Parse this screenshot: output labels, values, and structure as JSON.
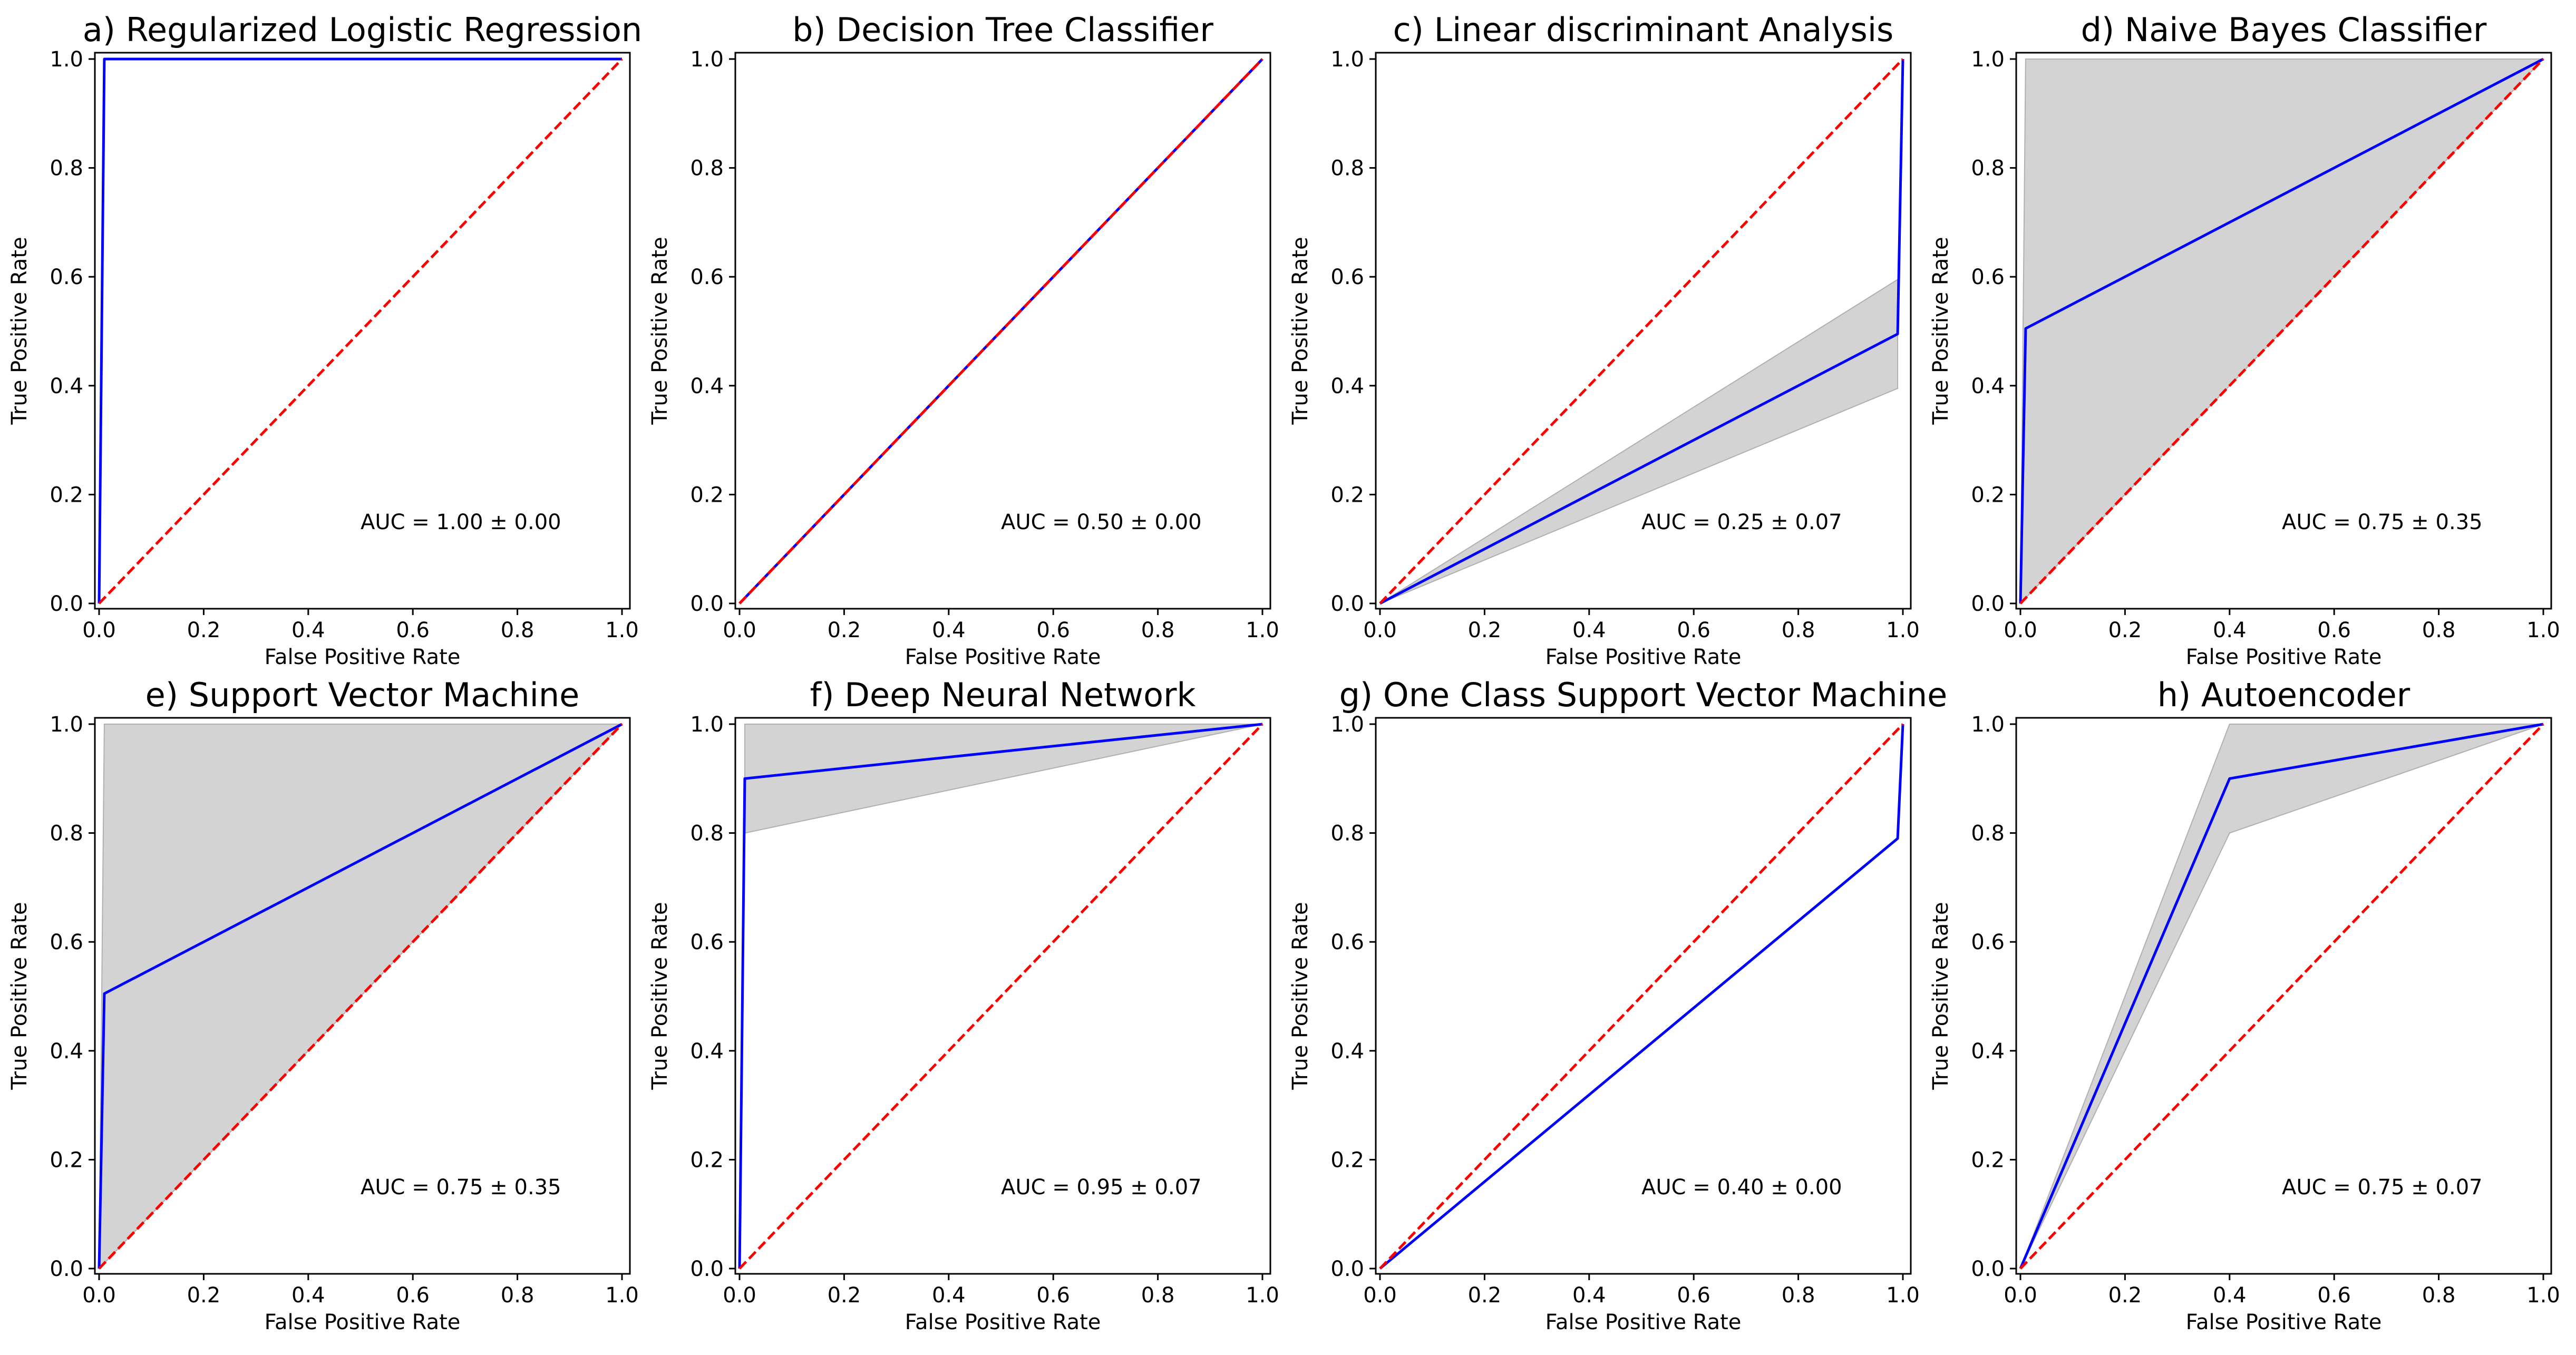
{
  "chart_data": [
    {
      "type": "line",
      "title": "a) Regularized Logistic Regression",
      "xlabel": "False Positive Rate",
      "ylabel": "True Positive Rate",
      "xlim": [
        0,
        1
      ],
      "ylim": [
        0,
        1
      ],
      "xticks": [
        "0.0",
        "0.2",
        "0.4",
        "0.6",
        "0.8",
        "1.0"
      ],
      "yticks": [
        "0.0",
        "0.2",
        "0.4",
        "0.6",
        "0.8",
        "1.0"
      ],
      "roc": {
        "x": [
          0.0,
          0.01,
          1.0
        ],
        "y": [
          0.0,
          1.0,
          1.0
        ],
        "color": "#0000ff"
      },
      "band": null,
      "chance": {
        "x": [
          0,
          1
        ],
        "y": [
          0,
          1
        ],
        "color": "#ff0000",
        "style": "dashed"
      },
      "annotation": "AUC = 1.00 ± 0.00"
    },
    {
      "type": "line",
      "title": "b) Decision Tree Classifier",
      "xlabel": "False Positive Rate",
      "ylabel": "True Positive Rate",
      "xlim": [
        0,
        1
      ],
      "ylim": [
        0,
        1
      ],
      "xticks": [
        "0.0",
        "0.2",
        "0.4",
        "0.6",
        "0.8",
        "1.0"
      ],
      "yticks": [
        "0.0",
        "0.2",
        "0.4",
        "0.6",
        "0.8",
        "1.0"
      ],
      "roc": {
        "x": [
          0.0,
          1.0
        ],
        "y": [
          0.0,
          1.0
        ],
        "color": "#0000ff"
      },
      "band": null,
      "chance": {
        "x": [
          0,
          1
        ],
        "y": [
          0,
          1
        ],
        "color": "#ff0000",
        "style": "dashed"
      },
      "annotation": "AUC = 0.50 ± 0.00"
    },
    {
      "type": "line",
      "title": "c) Linear discriminant Analysis",
      "xlabel": "False Positive Rate",
      "ylabel": "True Positive Rate",
      "xlim": [
        0,
        1
      ],
      "ylim": [
        0,
        1
      ],
      "xticks": [
        "0.0",
        "0.2",
        "0.4",
        "0.6",
        "0.8",
        "1.0"
      ],
      "yticks": [
        "0.0",
        "0.2",
        "0.4",
        "0.6",
        "0.8",
        "1.0"
      ],
      "roc": {
        "x": [
          0.0,
          0.99,
          1.0
        ],
        "y": [
          0.0,
          0.495,
          1.0
        ],
        "color": "#0000ff"
      },
      "band": {
        "x": [
          0.0,
          0.99
        ],
        "upper": [
          0.0,
          0.595
        ],
        "lower": [
          0.0,
          0.395
        ],
        "color": "#d3d3d3"
      },
      "chance": {
        "x": [
          0,
          1
        ],
        "y": [
          0,
          1
        ],
        "color": "#ff0000",
        "style": "dashed"
      },
      "annotation": "AUC = 0.25 ± 0.07"
    },
    {
      "type": "line",
      "title": "d) Naive Bayes Classifier",
      "xlabel": "False Positive Rate",
      "ylabel": "True Positive Rate",
      "xlim": [
        0,
        1
      ],
      "ylim": [
        0,
        1
      ],
      "xticks": [
        "0.0",
        "0.2",
        "0.4",
        "0.6",
        "0.8",
        "1.0"
      ],
      "yticks": [
        "0.0",
        "0.2",
        "0.4",
        "0.6",
        "0.8",
        "1.0"
      ],
      "roc": {
        "x": [
          0.0,
          0.01,
          1.0
        ],
        "y": [
          0.0,
          0.505,
          1.0
        ],
        "color": "#0000ff"
      },
      "band": {
        "x": [
          0.0,
          0.01,
          1.0
        ],
        "upper": [
          0.0,
          1.0,
          1.0
        ],
        "lower": [
          0.0,
          0.01,
          1.0
        ],
        "color": "#d3d3d3"
      },
      "chance": {
        "x": [
          0,
          1
        ],
        "y": [
          0,
          1
        ],
        "color": "#ff0000",
        "style": "dashed"
      },
      "annotation": "AUC = 0.75 ± 0.35"
    },
    {
      "type": "line",
      "title": "e) Support Vector Machine",
      "xlabel": "False Positive Rate",
      "ylabel": "True Positive Rate",
      "xlim": [
        0,
        1
      ],
      "ylim": [
        0,
        1
      ],
      "xticks": [
        "0.0",
        "0.2",
        "0.4",
        "0.6",
        "0.8",
        "1.0"
      ],
      "yticks": [
        "0.0",
        "0.2",
        "0.4",
        "0.6",
        "0.8",
        "1.0"
      ],
      "roc": {
        "x": [
          0.0,
          0.01,
          1.0
        ],
        "y": [
          0.0,
          0.505,
          1.0
        ],
        "color": "#0000ff"
      },
      "band": {
        "x": [
          0.0,
          0.01,
          1.0
        ],
        "upper": [
          0.0,
          1.0,
          1.0
        ],
        "lower": [
          0.0,
          0.01,
          1.0
        ],
        "color": "#d3d3d3"
      },
      "chance": {
        "x": [
          0,
          1
        ],
        "y": [
          0,
          1
        ],
        "color": "#ff0000",
        "style": "dashed"
      },
      "annotation": "AUC = 0.75 ± 0.35"
    },
    {
      "type": "line",
      "title": "f) Deep Neural Network",
      "xlabel": "False Positive Rate",
      "ylabel": "True Positive Rate",
      "xlim": [
        0,
        1
      ],
      "ylim": [
        0,
        1
      ],
      "xticks": [
        "0.0",
        "0.2",
        "0.4",
        "0.6",
        "0.8",
        "1.0"
      ],
      "yticks": [
        "0.0",
        "0.2",
        "0.4",
        "0.6",
        "0.8",
        "1.0"
      ],
      "roc": {
        "x": [
          0.0,
          0.01,
          1.0
        ],
        "y": [
          0.0,
          0.9,
          1.0
        ],
        "color": "#0000ff"
      },
      "band": {
        "x": [
          0.01,
          1.0
        ],
        "upper": [
          1.0,
          1.0
        ],
        "lower": [
          0.8,
          1.0
        ],
        "color": "#d3d3d3"
      },
      "chance": {
        "x": [
          0,
          1
        ],
        "y": [
          0,
          1
        ],
        "color": "#ff0000",
        "style": "dashed"
      },
      "annotation": "AUC = 0.95 ± 0.07"
    },
    {
      "type": "line",
      "title": "g) One Class Support Vector Machine",
      "xlabel": "False Positive Rate",
      "ylabel": "True Positive Rate",
      "xlim": [
        0,
        1
      ],
      "ylim": [
        0,
        1
      ],
      "xticks": [
        "0.0",
        "0.2",
        "0.4",
        "0.6",
        "0.8",
        "1.0"
      ],
      "yticks": [
        "0.0",
        "0.2",
        "0.4",
        "0.6",
        "0.8",
        "1.0"
      ],
      "roc": {
        "x": [
          0.0,
          0.99,
          1.0
        ],
        "y": [
          0.0,
          0.79,
          1.0
        ],
        "color": "#0000ff"
      },
      "band": null,
      "chance": {
        "x": [
          0,
          1
        ],
        "y": [
          0,
          1
        ],
        "color": "#ff0000",
        "style": "dashed"
      },
      "annotation": "AUC = 0.40 ± 0.00"
    },
    {
      "type": "line",
      "title": "h) Autoencoder",
      "xlabel": "False Positive Rate",
      "ylabel": "True Positive Rate",
      "xlim": [
        0,
        1
      ],
      "ylim": [
        0,
        1
      ],
      "xticks": [
        "0.0",
        "0.2",
        "0.4",
        "0.6",
        "0.8",
        "1.0"
      ],
      "yticks": [
        "0.0",
        "0.2",
        "0.4",
        "0.6",
        "0.8",
        "1.0"
      ],
      "roc": {
        "x": [
          0.0,
          0.4,
          1.0
        ],
        "y": [
          0.0,
          0.9,
          1.0
        ],
        "color": "#0000ff"
      },
      "band": {
        "x": [
          0.0,
          0.4,
          1.0
        ],
        "upper": [
          0.0,
          1.0,
          1.0
        ],
        "lower": [
          0.0,
          0.8,
          1.0
        ],
        "color": "#d3d3d3"
      },
      "chance": {
        "x": [
          0,
          1
        ],
        "y": [
          0,
          1
        ],
        "color": "#ff0000",
        "style": "dashed"
      },
      "annotation": "AUC = 0.75 ± 0.07"
    }
  ]
}
